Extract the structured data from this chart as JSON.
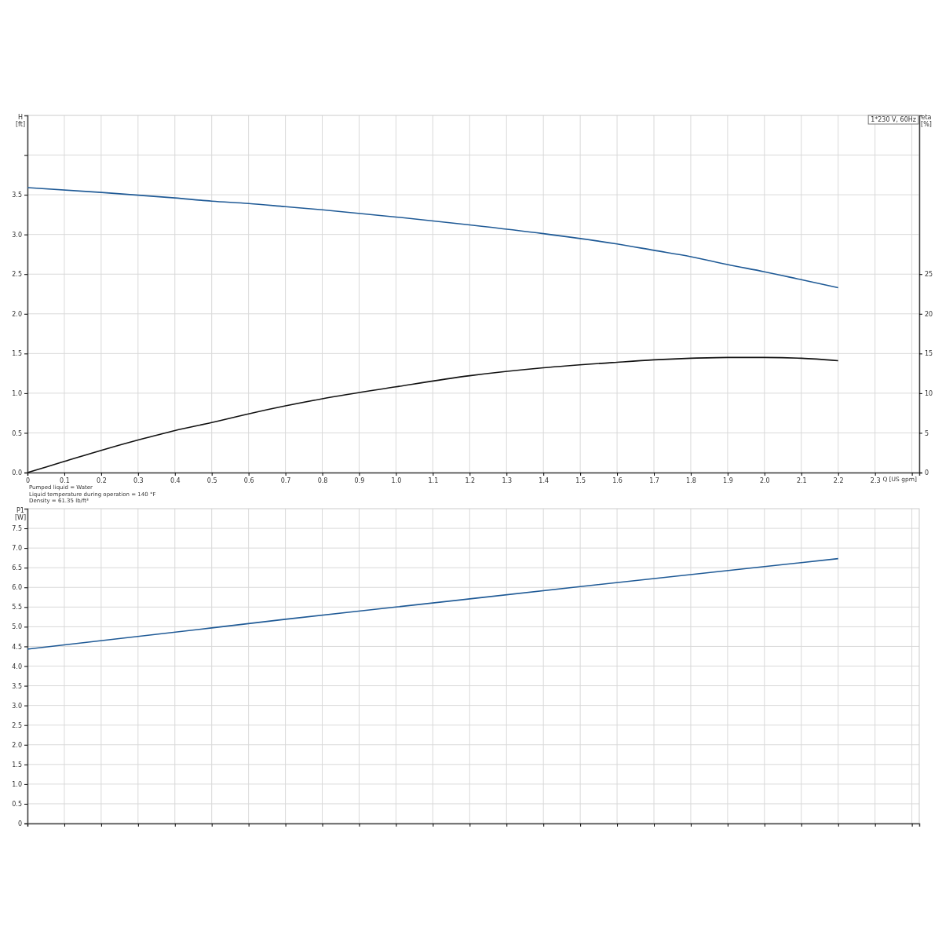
{
  "chart_data": [
    {
      "type": "line",
      "xlabel": "Q [US gpm]",
      "ylabel": "H [ft]",
      "y2label": "eta [%]",
      "xlim": [
        0,
        2.42
      ],
      "xticks": [
        0,
        0.1,
        0.2,
        0.3,
        0.4,
        0.5,
        0.6,
        0.7,
        0.8,
        0.9,
        {
          "value": 1,
          "label": "1.0"
        },
        1.1,
        1.2,
        1.3,
        1.4,
        1.5,
        1.6,
        1.7,
        1.8,
        1.9,
        {
          "value": 2,
          "label": "2.0"
        },
        2.1,
        2.2,
        2.3,
        {
          "value": 2.4,
          "label": null
        }
      ],
      "ylim": [
        0,
        4.5
      ],
      "yticks": [
        {
          "value": 0,
          "label": "0.0"
        },
        0.5,
        {
          "value": 1,
          "label": "1.0"
        },
        1.5,
        {
          "value": 2,
          "label": "2.0"
        },
        2.5,
        {
          "value": 3,
          "label": "3.0"
        },
        3.5,
        {
          "value": 4,
          "label": null
        }
      ],
      "y2lim": [
        0,
        45
      ],
      "y2ticks": [
        0,
        5,
        10,
        15,
        20,
        25
      ],
      "grid": true,
      "line_style": "solid",
      "marker": "none",
      "series": [
        {
          "color": "#1f5a96",
          "x": [
            0,
            0.2,
            0.4,
            0.5,
            0.6,
            0.7,
            0.8,
            1.0,
            1.2,
            1.4,
            1.6,
            1.7,
            1.8,
            1.9,
            2.0,
            2.1,
            2.2
          ],
          "values": [
            3.59,
            3.53,
            3.46,
            3.42,
            3.39,
            3.35,
            3.31,
            3.22,
            3.12,
            3.01,
            2.88,
            2.8,
            2.72,
            2.62,
            2.53,
            2.43,
            2.33
          ]
        },
        {
          "color": "#111111",
          "axis": "y2",
          "x": [
            0,
            0.1,
            0.2,
            0.3,
            0.4,
            0.5,
            0.6,
            0.7,
            0.8,
            1.0,
            1.2,
            1.4,
            1.6,
            1.7,
            1.8,
            1.9,
            2.0,
            2.1,
            2.2
          ],
          "values": [
            0,
            1.4,
            2.8,
            4.1,
            5.3,
            6.3,
            7.4,
            8.4,
            9.3,
            10.8,
            12.2,
            13.2,
            13.9,
            14.2,
            14.4,
            14.5,
            14.5,
            14.4,
            14.1
          ]
        }
      ],
      "annotations": [
        "1*230 V, 60Hz",
        "Pumped liquid = Water",
        "Liquid temperature during operation = 140 °F",
        "Density = 61.35 lb/ft³"
      ]
    },
    {
      "type": "line",
      "ylabel": "P1 [W]",
      "xlim": [
        0,
        2.42
      ],
      "xticks": [
        {
          "value": 0,
          "label": null
        },
        {
          "value": 0.1,
          "label": null
        },
        {
          "value": 0.2,
          "label": null
        },
        {
          "value": 0.3,
          "label": null
        },
        {
          "value": 0.4,
          "label": null
        },
        {
          "value": 0.5,
          "label": null
        },
        {
          "value": 0.6,
          "label": null
        },
        {
          "value": 0.7,
          "label": null
        },
        {
          "value": 0.8,
          "label": null
        },
        {
          "value": 0.9,
          "label": null
        },
        {
          "value": 1,
          "label": null
        },
        {
          "value": 1.1,
          "label": null
        },
        {
          "value": 1.2,
          "label": null
        },
        {
          "value": 1.3,
          "label": null
        },
        {
          "value": 1.4,
          "label": null
        },
        {
          "value": 1.5,
          "label": null
        },
        {
          "value": 1.6,
          "label": null
        },
        {
          "value": 1.7,
          "label": null
        },
        {
          "value": 1.8,
          "label": null
        },
        {
          "value": 1.9,
          "label": null
        },
        {
          "value": 2,
          "label": null
        },
        {
          "value": 2.1,
          "label": null
        },
        {
          "value": 2.2,
          "label": null
        },
        {
          "value": 2.3,
          "label": null
        },
        {
          "value": 2.4,
          "label": null
        }
      ],
      "ylim": [
        0,
        8
      ],
      "yticks": [
        0,
        0.5,
        {
          "value": 1,
          "label": "1.0"
        },
        1.5,
        {
          "value": 2,
          "label": "2.0"
        },
        2.5,
        {
          "value": 3,
          "label": "3.0"
        },
        3.5,
        {
          "value": 4,
          "label": "4.0"
        },
        4.5,
        {
          "value": 5,
          "label": "5.0"
        },
        5.5,
        {
          "value": 6,
          "label": "6.0"
        },
        6.5,
        {
          "value": 7,
          "label": "7.0"
        },
        7.5
      ],
      "grid": true,
      "tick_labels": "y",
      "line_style": "solid",
      "marker": "none",
      "series": [
        {
          "color": "#1f5a96",
          "x": [
            0,
            0.5,
            0.7,
            1.0,
            1.5,
            2.0,
            2.2
          ],
          "values": [
            4.43,
            4.97,
            5.19,
            5.5,
            6.02,
            6.53,
            6.73
          ]
        }
      ]
    }
  ]
}
